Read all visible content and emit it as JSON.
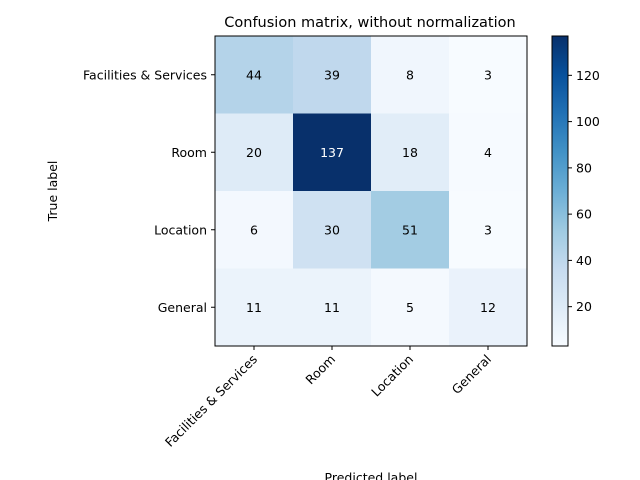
{
  "chart_data": {
    "type": "heatmap",
    "title": "Confusion matrix, without normalization",
    "xlabel": "Predicted label",
    "ylabel": "True label",
    "x_categories": [
      "Facilities & Services",
      "Room",
      "Location",
      "General"
    ],
    "y_categories": [
      "Facilities & Services",
      "Room",
      "Location",
      "General"
    ],
    "values": [
      [
        44,
        39,
        8,
        3
      ],
      [
        20,
        137,
        18,
        4
      ],
      [
        6,
        30,
        51,
        3
      ],
      [
        11,
        11,
        5,
        12
      ]
    ],
    "colormap": "Blues",
    "value_range": [
      3,
      137
    ],
    "colorbar_ticks": [
      20,
      40,
      60,
      80,
      100,
      120
    ],
    "x_tick_rotation_deg": 45,
    "text_color_light": "#ffffff",
    "text_color_dark": "#000000"
  }
}
